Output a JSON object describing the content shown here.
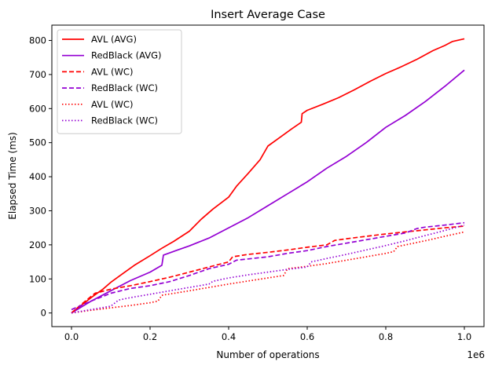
{
  "chart_data": {
    "type": "line",
    "title": "Insert Average Case",
    "xlabel": "Number of operations",
    "ylabel": "Elapsed Time (ms)",
    "x_offset_label": "1e6",
    "xlim": [
      -0.05,
      1.05
    ],
    "ylim": [
      -40,
      845
    ],
    "xticks": [
      0.0,
      0.2,
      0.4,
      0.6,
      0.8,
      1.0
    ],
    "xtick_labels": [
      "0.0",
      "0.2",
      "0.4",
      "0.6",
      "0.8",
      "1.0"
    ],
    "yticks": [
      0,
      100,
      200,
      300,
      400,
      500,
      600,
      700,
      800
    ],
    "ytick_labels": [
      "0",
      "100",
      "200",
      "300",
      "400",
      "500",
      "600",
      "700",
      "800"
    ],
    "grid": false,
    "legend_position": "top-left",
    "series": [
      {
        "name": "AVL (AVG)",
        "color": "#ff0000",
        "style": "solid",
        "x": [
          0,
          0.02,
          0.05,
          0.08,
          0.1,
          0.13,
          0.16,
          0.2,
          0.23,
          0.26,
          0.3,
          0.33,
          0.36,
          0.4,
          0.42,
          0.45,
          0.48,
          0.5,
          0.53,
          0.56,
          0.585,
          0.587,
          0.6,
          0.64,
          0.68,
          0.72,
          0.76,
          0.8,
          0.84,
          0.88,
          0.92,
          0.95,
          0.97,
          1.0
        ],
        "y": [
          0,
          18,
          45,
          70,
          90,
          115,
          140,
          168,
          190,
          210,
          240,
          275,
          305,
          340,
          372,
          410,
          450,
          490,
          515,
          540,
          560,
          585,
          595,
          613,
          632,
          655,
          680,
          703,
          723,
          745,
          770,
          785,
          797,
          805
        ]
      },
      {
        "name": "RedBlack (AVG)",
        "color": "#9400d3",
        "style": "solid",
        "x": [
          0,
          0.05,
          0.1,
          0.15,
          0.2,
          0.23,
          0.234,
          0.27,
          0.3,
          0.35,
          0.4,
          0.45,
          0.5,
          0.55,
          0.6,
          0.65,
          0.7,
          0.75,
          0.8,
          0.85,
          0.9,
          0.95,
          1.0
        ],
        "y": [
          0,
          35,
          65,
          95,
          120,
          140,
          170,
          185,
          197,
          220,
          250,
          280,
          315,
          350,
          385,
          425,
          460,
          500,
          545,
          580,
          620,
          665,
          713
        ]
      },
      {
        "name": "AVL (WC)",
        "color": "#ff0000",
        "style": "dashed",
        "x": [
          0,
          0.03,
          0.06,
          0.1,
          0.15,
          0.2,
          0.25,
          0.3,
          0.35,
          0.4,
          0.41,
          0.45,
          0.5,
          0.55,
          0.6,
          0.65,
          0.67,
          0.7,
          0.75,
          0.8,
          0.85,
          0.9,
          0.95,
          1.0
        ],
        "y": [
          0,
          30,
          58,
          70,
          80,
          92,
          105,
          120,
          135,
          150,
          165,
          172,
          178,
          185,
          193,
          200,
          213,
          218,
          225,
          232,
          238,
          244,
          250,
          255
        ]
      },
      {
        "name": "RedBlack (WC)",
        "color": "#9400d3",
        "style": "dashed",
        "x": [
          0,
          0.05,
          0.1,
          0.15,
          0.2,
          0.25,
          0.3,
          0.35,
          0.4,
          0.42,
          0.5,
          0.55,
          0.6,
          0.65,
          0.7,
          0.75,
          0.8,
          0.85,
          0.88,
          0.9,
          0.95,
          1.0
        ],
        "y": [
          10,
          35,
          58,
          72,
          80,
          92,
          110,
          130,
          143,
          155,
          165,
          175,
          183,
          195,
          205,
          215,
          225,
          235,
          248,
          252,
          258,
          265
        ]
      },
      {
        "name": "AVL (WC)",
        "color": "#ff0000",
        "style": "dotted",
        "x": [
          0,
          0.05,
          0.1,
          0.15,
          0.2,
          0.22,
          0.23,
          0.3,
          0.4,
          0.5,
          0.54,
          0.55,
          0.6,
          0.65,
          0.7,
          0.75,
          0.8,
          0.82,
          0.83,
          0.9,
          0.95,
          1.0
        ],
        "y": [
          0,
          8,
          15,
          22,
          30,
          35,
          52,
          65,
          85,
          103,
          110,
          130,
          137,
          145,
          155,
          165,
          175,
          180,
          195,
          212,
          225,
          238
        ]
      },
      {
        "name": "RedBlack (WC)",
        "color": "#9400d3",
        "style": "dotted",
        "x": [
          0,
          0.05,
          0.1,
          0.12,
          0.15,
          0.2,
          0.25,
          0.3,
          0.35,
          0.36,
          0.4,
          0.45,
          0.5,
          0.55,
          0.6,
          0.61,
          0.65,
          0.7,
          0.75,
          0.8,
          0.85,
          0.9,
          0.95,
          1.0
        ],
        "y": [
          0,
          10,
          20,
          38,
          45,
          55,
          65,
          75,
          85,
          93,
          103,
          112,
          120,
          128,
          135,
          150,
          160,
          172,
          185,
          198,
          212,
          227,
          242,
          258
        ]
      }
    ]
  }
}
